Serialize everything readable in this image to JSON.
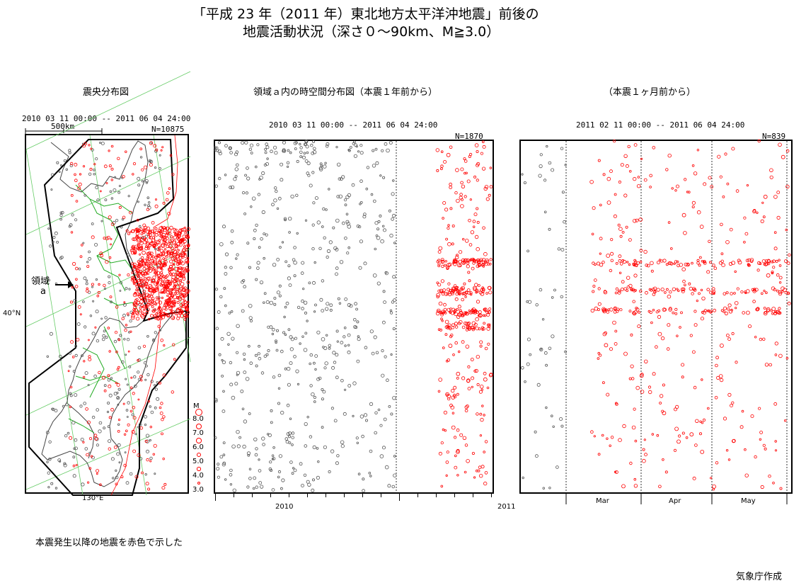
{
  "title": {
    "line1": "「平成 23 年（2011 年）東北地方太平洋沖地震」前後の",
    "line2": "地震活動状況（深さ０～90km、M≧3.0）"
  },
  "map_panel": {
    "heading": "震央分布図",
    "period": "2010 03 11 00:00 -- 2011 06 04 24:00",
    "scale_label": "500km",
    "count": "N=10875",
    "lat_label": "40°N",
    "lon_label": "130°E",
    "region_label_1": "領域",
    "region_label_2": "a",
    "mag_legend": {
      "title": "M",
      "values": [
        "8.0",
        "7.0",
        "6.0",
        "5.0",
        "4.0",
        "3.0"
      ]
    }
  },
  "timeline_year": {
    "heading": "領域ａ内の時空間分布図（本震１年前から）",
    "period": "2010 03 11 00:00 -- 2011 06 04 24:00",
    "count": "N=1870",
    "x_labels": [
      "2010",
      "2011"
    ]
  },
  "timeline_month": {
    "heading": "（本震１ヶ月前から）",
    "period": "2011 02 11 00:00 -- 2011 06 04 24:00",
    "count": "N=839",
    "x_labels": [
      "Mar",
      "Apr",
      "May"
    ]
  },
  "footnote": "本震発生以降の地震を赤色で示した",
  "credit": "気象庁作成",
  "colors": {
    "before_mainshock": "#555555",
    "after_mainshock": "#ff0000",
    "coastline": "#444444",
    "prefecture_borders": "#22aa22",
    "grid": "#66cc66"
  }
}
